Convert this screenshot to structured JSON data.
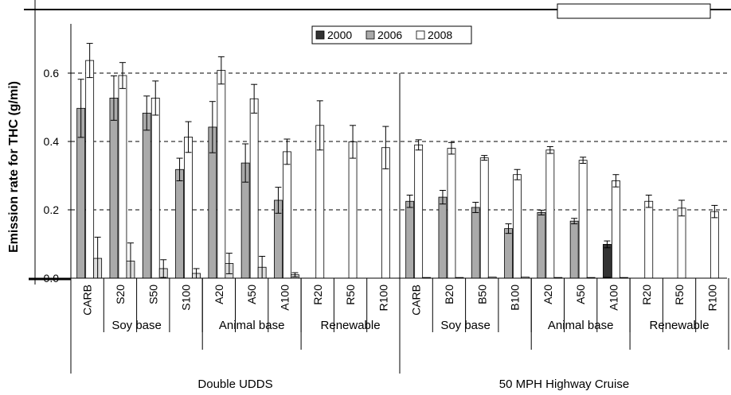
{
  "chart_data": {
    "type": "bar",
    "title": "",
    "ylabel": "Emission rate for THC (g/mi)",
    "ylim": [
      0,
      0.72
    ],
    "yticks": [
      "0.0",
      "0.2",
      "0.4",
      "0.6"
    ],
    "ytick_values": [
      0,
      0.2,
      0.4,
      0.6
    ],
    "grid": "dashed horizontal at 0.2, 0.4, 0.6",
    "legend": {
      "position": "top-center",
      "items": [
        "2000",
        "2006",
        "2008"
      ]
    },
    "categories": [
      "CARB",
      "S20",
      "S50",
      "S100",
      "A20",
      "A50",
      "A100",
      "R20",
      "R50",
      "R100",
      "CARB",
      "B20",
      "B50",
      "B100",
      "A20",
      "A50",
      "A100",
      "R20",
      "R50",
      "R100"
    ],
    "groups": [
      {
        "label": "Soy base",
        "span": [
          0,
          3
        ]
      },
      {
        "label": "Animal base",
        "span": [
          4,
          6
        ]
      },
      {
        "label": "Renewable",
        "span": [
          7,
          9
        ]
      },
      {
        "label": "Soy base",
        "span": [
          10,
          13
        ]
      },
      {
        "label": "Animal base",
        "span": [
          14,
          16
        ]
      },
      {
        "label": "Renewable",
        "span": [
          17,
          19
        ]
      }
    ],
    "cycles": [
      {
        "label": "Double UDDS",
        "span": [
          0,
          9
        ]
      },
      {
        "label": "50 MPH Highway Cruise",
        "span": [
          10,
          19
        ]
      }
    ],
    "series": [
      {
        "name": "2000",
        "color": "#333333",
        "values": [
          null,
          null,
          null,
          null,
          null,
          null,
          null,
          null,
          null,
          null,
          0.0,
          0.0,
          0.0,
          0.0,
          0.0,
          0.0,
          0.099,
          null,
          null,
          null
        ],
        "errors": [
          null,
          null,
          null,
          null,
          null,
          null,
          null,
          null,
          null,
          null,
          0,
          0,
          0,
          0,
          0,
          0,
          0.01,
          null,
          null,
          null
        ]
      },
      {
        "name": "2006",
        "color": "#aaaaaa",
        "values": [
          0.497,
          0.527,
          0.483,
          0.318,
          0.442,
          0.337,
          0.228,
          null,
          null,
          null,
          0.225,
          0.237,
          0.207,
          0.145,
          0.192,
          0.167,
          0.0,
          null,
          null,
          null
        ],
        "errors": [
          0.085,
          0.065,
          0.05,
          0.033,
          0.075,
          0.056,
          0.038,
          null,
          null,
          null,
          0.018,
          0.02,
          0.015,
          0.014,
          0.007,
          0.008,
          0,
          null,
          null,
          null
        ]
      },
      {
        "name": "2008",
        "color": "#ffffff",
        "values": [
          0.637,
          0.593,
          0.527,
          0.413,
          0.608,
          0.525,
          0.37,
          0.447,
          0.399,
          0.382,
          0.39,
          0.38,
          0.352,
          0.303,
          0.375,
          0.345,
          0.285,
          0.225,
          0.205,
          0.195
        ],
        "errors": [
          0.05,
          0.038,
          0.05,
          0.045,
          0.04,
          0.042,
          0.037,
          0.072,
          0.048,
          0.062,
          0.015,
          0.017,
          0.007,
          0.015,
          0.01,
          0.009,
          0.018,
          0.018,
          0.023,
          0.018
        ]
      },
      {
        "name": "",
        "color": "#dddddd",
        "values": [
          0.058,
          0.05,
          0.028,
          0.014,
          0.043,
          0.032,
          0.01,
          null,
          null,
          null,
          0.002,
          0.002,
          0.003,
          0.003,
          0.002,
          0.002,
          0.002,
          null,
          null,
          null
        ],
        "errors": [
          0.062,
          0.053,
          0.026,
          0.014,
          0.03,
          0.032,
          0.006,
          null,
          null,
          null,
          0.0,
          0.0,
          0.0,
          0.0,
          0.0,
          0.0,
          0.0,
          null,
          null,
          null
        ]
      }
    ]
  }
}
